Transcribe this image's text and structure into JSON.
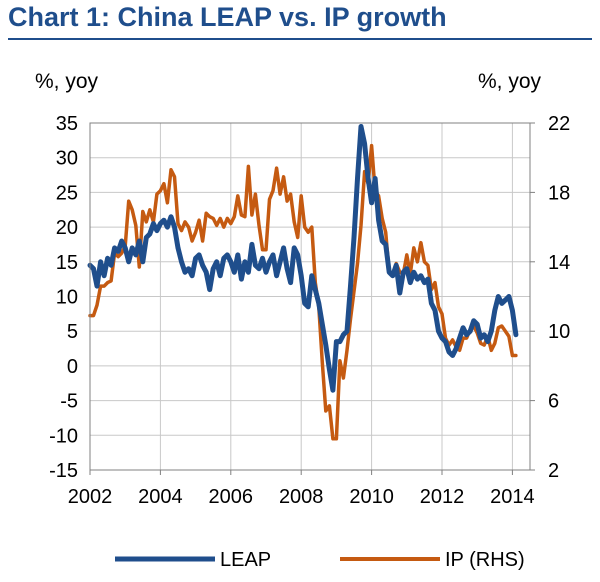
{
  "chart_data": {
    "type": "line",
    "title": "Chart 1: China LEAP vs. IP growth",
    "ylabel_left": "%, yoy",
    "ylabel_right": "%, yoy",
    "x_ticks": [
      "2002",
      "2004",
      "2006",
      "2008",
      "2010",
      "2012",
      "2014"
    ],
    "xlim": [
      2002,
      2014.5
    ],
    "ylim_left": [
      -15,
      35
    ],
    "ylim_right": [
      2,
      22
    ],
    "y_ticks_left": [
      "35",
      "30",
      "25",
      "20",
      "15",
      "10",
      "5",
      "0",
      "-5",
      "-10",
      "-15"
    ],
    "y_ticks_right": [
      "22",
      "18",
      "14",
      "10",
      "6",
      "2"
    ],
    "grid": true,
    "legend_position": "bottom",
    "series": [
      {
        "name": "LEAP",
        "axis": "left",
        "color": "#1f4e8c",
        "points": [
          [
            2002.0,
            14.5
          ],
          [
            2002.1,
            14.0
          ],
          [
            2002.2,
            11.5
          ],
          [
            2002.3,
            15.0
          ],
          [
            2002.4,
            13.0
          ],
          [
            2002.5,
            15.5
          ],
          [
            2002.6,
            14.5
          ],
          [
            2002.7,
            17.0
          ],
          [
            2002.8,
            16.5
          ],
          [
            2002.9,
            18.0
          ],
          [
            2003.0,
            17.0
          ],
          [
            2003.1,
            15.0
          ],
          [
            2003.2,
            17.0
          ],
          [
            2003.3,
            16.0
          ],
          [
            2003.4,
            18.0
          ],
          [
            2003.5,
            15.0
          ],
          [
            2003.6,
            18.5
          ],
          [
            2003.7,
            19.0
          ],
          [
            2003.8,
            20.5
          ],
          [
            2003.9,
            19.5
          ],
          [
            2004.0,
            20.5
          ],
          [
            2004.1,
            21.0
          ],
          [
            2004.2,
            20.0
          ],
          [
            2004.3,
            21.5
          ],
          [
            2004.4,
            20.0
          ],
          [
            2004.5,
            17.0
          ],
          [
            2004.6,
            15.0
          ],
          [
            2004.7,
            13.5
          ],
          [
            2004.8,
            14.0
          ],
          [
            2004.9,
            13.0
          ],
          [
            2005.0,
            15.5
          ],
          [
            2005.1,
            16.0
          ],
          [
            2005.2,
            14.5
          ],
          [
            2005.3,
            13.5
          ],
          [
            2005.4,
            11.0
          ],
          [
            2005.5,
            14.0
          ],
          [
            2005.6,
            15.0
          ],
          [
            2005.7,
            13.0
          ],
          [
            2005.8,
            15.5
          ],
          [
            2005.9,
            16.0
          ],
          [
            2006.0,
            15.0
          ],
          [
            2006.1,
            13.5
          ],
          [
            2006.2,
            16.0
          ],
          [
            2006.3,
            12.5
          ],
          [
            2006.4,
            15.0
          ],
          [
            2006.5,
            13.5
          ],
          [
            2006.6,
            17.5
          ],
          [
            2006.7,
            14.5
          ],
          [
            2006.8,
            14.0
          ],
          [
            2006.9,
            15.5
          ],
          [
            2007.0,
            13.5
          ],
          [
            2007.1,
            15.0
          ],
          [
            2007.2,
            16.0
          ],
          [
            2007.3,
            13.0
          ],
          [
            2007.4,
            15.0
          ],
          [
            2007.5,
            17.0
          ],
          [
            2007.6,
            14.0
          ],
          [
            2007.7,
            12.0
          ],
          [
            2007.8,
            17.0
          ],
          [
            2007.9,
            16.0
          ],
          [
            2008.0,
            13.0
          ],
          [
            2008.1,
            9.0
          ],
          [
            2008.2,
            8.5
          ],
          [
            2008.3,
            13.0
          ],
          [
            2008.4,
            11.0
          ],
          [
            2008.5,
            9.0
          ],
          [
            2008.6,
            6.0
          ],
          [
            2008.7,
            3.0
          ],
          [
            2008.8,
            -0.5
          ],
          [
            2008.9,
            -3.5
          ],
          [
            2009.0,
            3.5
          ],
          [
            2009.1,
            3.5
          ],
          [
            2009.2,
            4.5
          ],
          [
            2009.3,
            5.0
          ],
          [
            2009.4,
            11.5
          ],
          [
            2009.5,
            18.5
          ],
          [
            2009.6,
            27.0
          ],
          [
            2009.7,
            34.5
          ],
          [
            2009.8,
            32.0
          ],
          [
            2009.9,
            27.0
          ],
          [
            2010.0,
            23.5
          ],
          [
            2010.1,
            27.0
          ],
          [
            2010.2,
            21.0
          ],
          [
            2010.3,
            18.0
          ],
          [
            2010.4,
            17.5
          ],
          [
            2010.5,
            13.5
          ],
          [
            2010.6,
            13.0
          ],
          [
            2010.7,
            14.5
          ],
          [
            2010.8,
            10.5
          ],
          [
            2010.9,
            13.5
          ],
          [
            2011.0,
            14.0
          ],
          [
            2011.1,
            12.0
          ],
          [
            2011.2,
            13.5
          ],
          [
            2011.3,
            12.5
          ],
          [
            2011.4,
            13.0
          ],
          [
            2011.5,
            12.0
          ],
          [
            2011.6,
            12.5
          ],
          [
            2011.7,
            9.0
          ],
          [
            2011.8,
            8.0
          ],
          [
            2011.9,
            5.0
          ],
          [
            2012.0,
            4.0
          ],
          [
            2012.1,
            3.5
          ],
          [
            2012.2,
            2.0
          ],
          [
            2012.3,
            1.5
          ],
          [
            2012.4,
            2.5
          ],
          [
            2012.5,
            4.0
          ],
          [
            2012.6,
            5.5
          ],
          [
            2012.7,
            4.5
          ],
          [
            2012.8,
            5.0
          ],
          [
            2012.9,
            6.5
          ],
          [
            2013.0,
            6.0
          ],
          [
            2013.1,
            4.0
          ],
          [
            2013.2,
            4.5
          ],
          [
            2013.3,
            3.5
          ],
          [
            2013.4,
            5.0
          ],
          [
            2013.5,
            8.0
          ],
          [
            2013.6,
            10.0
          ],
          [
            2013.7,
            9.0
          ],
          [
            2013.8,
            9.5
          ],
          [
            2013.9,
            10.0
          ],
          [
            2014.0,
            8.0
          ],
          [
            2014.1,
            4.5
          ]
        ]
      },
      {
        "name": "IP (RHS)",
        "axis": "right",
        "color": "#c55a11",
        "points": [
          [
            2002.0,
            10.9
          ],
          [
            2002.1,
            10.9
          ],
          [
            2002.2,
            11.5
          ],
          [
            2002.3,
            12.6
          ],
          [
            2002.4,
            12.6
          ],
          [
            2002.5,
            12.8
          ],
          [
            2002.6,
            12.9
          ],
          [
            2002.7,
            14.5
          ],
          [
            2002.8,
            14.3
          ],
          [
            2002.9,
            14.5
          ],
          [
            2003.0,
            14.9
          ],
          [
            2003.1,
            17.5
          ],
          [
            2003.2,
            17.0
          ],
          [
            2003.3,
            16.1
          ],
          [
            2003.4,
            13.7
          ],
          [
            2003.5,
            16.9
          ],
          [
            2003.6,
            16.3
          ],
          [
            2003.7,
            17.0
          ],
          [
            2003.8,
            16.3
          ],
          [
            2003.9,
            17.9
          ],
          [
            2004.0,
            18.1
          ],
          [
            2004.1,
            18.5
          ],
          [
            2004.2,
            17.4
          ],
          [
            2004.3,
            19.3
          ],
          [
            2004.4,
            18.9
          ],
          [
            2004.5,
            16.2
          ],
          [
            2004.6,
            15.8
          ],
          [
            2004.7,
            16.3
          ],
          [
            2004.8,
            16.0
          ],
          [
            2004.9,
            15.2
          ],
          [
            2005.0,
            15.7
          ],
          [
            2005.1,
            16.4
          ],
          [
            2005.2,
            15.2
          ],
          [
            2005.3,
            16.8
          ],
          [
            2005.4,
            16.6
          ],
          [
            2005.5,
            16.5
          ],
          [
            2005.6,
            16.1
          ],
          [
            2005.7,
            16.5
          ],
          [
            2005.8,
            16.0
          ],
          [
            2005.9,
            16.5
          ],
          [
            2006.0,
            16.2
          ],
          [
            2006.1,
            16.6
          ],
          [
            2006.2,
            17.8
          ],
          [
            2006.3,
            16.7
          ],
          [
            2006.4,
            16.6
          ],
          [
            2006.5,
            19.5
          ],
          [
            2006.6,
            16.7
          ],
          [
            2006.7,
            17.9
          ],
          [
            2006.8,
            16.1
          ],
          [
            2006.9,
            14.7
          ],
          [
            2007.0,
            14.7
          ],
          [
            2007.1,
            17.6
          ],
          [
            2007.2,
            18.1
          ],
          [
            2007.3,
            19.4
          ],
          [
            2007.4,
            17.9
          ],
          [
            2007.5,
            18.9
          ],
          [
            2007.6,
            17.5
          ],
          [
            2007.7,
            17.9
          ],
          [
            2007.8,
            16.3
          ],
          [
            2007.9,
            15.4
          ],
          [
            2008.0,
            17.8
          ],
          [
            2008.1,
            16.0
          ],
          [
            2008.2,
            15.7
          ],
          [
            2008.3,
            16.0
          ],
          [
            2008.4,
            12.8
          ],
          [
            2008.5,
            11.4
          ],
          [
            2008.6,
            8.2
          ],
          [
            2008.7,
            5.4
          ],
          [
            2008.8,
            5.7
          ],
          [
            2008.9,
            3.8
          ],
          [
            2009.0,
            3.8
          ],
          [
            2009.1,
            8.3
          ],
          [
            2009.2,
            7.3
          ],
          [
            2009.3,
            8.9
          ],
          [
            2009.4,
            10.7
          ],
          [
            2009.5,
            12.3
          ],
          [
            2009.6,
            13.9
          ],
          [
            2009.7,
            16.1
          ],
          [
            2009.8,
            19.2
          ],
          [
            2009.9,
            18.5
          ],
          [
            2010.0,
            20.7
          ],
          [
            2010.1,
            18.1
          ],
          [
            2010.2,
            17.8
          ],
          [
            2010.3,
            16.5
          ],
          [
            2010.4,
            15.7
          ],
          [
            2010.5,
            13.4
          ],
          [
            2010.6,
            13.3
          ],
          [
            2010.7,
            13.9
          ],
          [
            2010.8,
            13.4
          ],
          [
            2010.9,
            13.3
          ],
          [
            2011.0,
            14.4
          ],
          [
            2011.1,
            13.3
          ],
          [
            2011.2,
            14.8
          ],
          [
            2011.3,
            14.0
          ],
          [
            2011.4,
            15.1
          ],
          [
            2011.5,
            14.0
          ],
          [
            2011.6,
            13.8
          ],
          [
            2011.7,
            12.4
          ],
          [
            2011.8,
            12.8
          ],
          [
            2011.9,
            11.4
          ],
          [
            2012.0,
            11.0
          ],
          [
            2012.1,
            9.6
          ],
          [
            2012.2,
            9.2
          ],
          [
            2012.3,
            9.5
          ],
          [
            2012.4,
            9.1
          ],
          [
            2012.5,
            8.9
          ],
          [
            2012.6,
            9.6
          ],
          [
            2012.7,
            9.6
          ],
          [
            2012.8,
            10.1
          ],
          [
            2012.9,
            10.3
          ],
          [
            2013.0,
            9.9
          ],
          [
            2013.1,
            9.3
          ],
          [
            2013.2,
            9.2
          ],
          [
            2013.3,
            9.7
          ],
          [
            2013.4,
            8.9
          ],
          [
            2013.5,
            9.3
          ],
          [
            2013.6,
            10.2
          ],
          [
            2013.7,
            10.3
          ],
          [
            2013.8,
            10.0
          ],
          [
            2013.9,
            9.7
          ],
          [
            2014.0,
            8.6
          ],
          [
            2014.1,
            8.6
          ]
        ]
      }
    ]
  }
}
